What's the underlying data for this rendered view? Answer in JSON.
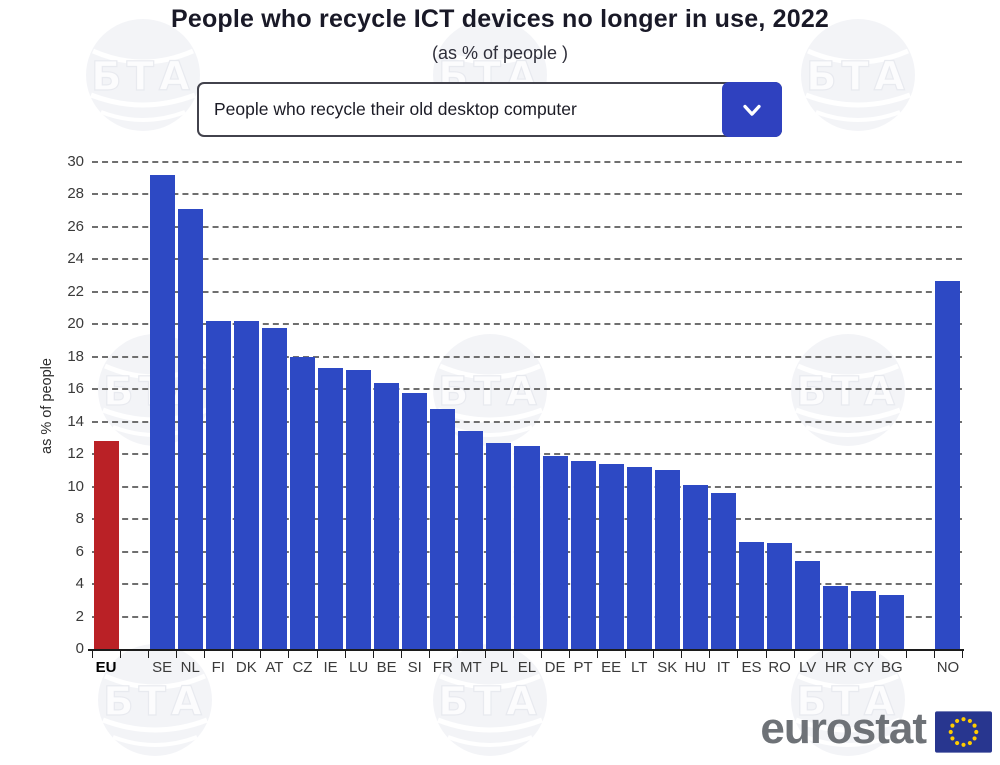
{
  "watermark": {
    "text": "БТА"
  },
  "header": {
    "title": "People who recycle ICT devices no longer in use, 2022",
    "subtitle": "(as % of people )"
  },
  "dropdown": {
    "value": "People who recycle their old desktop computer"
  },
  "chart_data": {
    "type": "bar",
    "title": "People who recycle ICT devices no longer in use, 2022",
    "subtitle": "(as % of people )",
    "categories": [
      "EU",
      "SE",
      "NL",
      "FI",
      "DK",
      "AT",
      "CZ",
      "IE",
      "LU",
      "BE",
      "SI",
      "FR",
      "MT",
      "PL",
      "EL",
      "DE",
      "PT",
      "EE",
      "LT",
      "SK",
      "HU",
      "IT",
      "ES",
      "RO",
      "LV",
      "HR",
      "CY",
      "BG",
      "NO"
    ],
    "values": [
      12.8,
      29.2,
      27.1,
      20.2,
      20.2,
      19.8,
      18.0,
      17.3,
      17.2,
      16.4,
      15.8,
      14.8,
      13.4,
      12.7,
      12.5,
      11.9,
      11.6,
      11.4,
      11.2,
      11.0,
      10.1,
      9.6,
      6.6,
      6.5,
      5.4,
      3.9,
      3.6,
      3.3,
      22.7
    ],
    "highlighted_category": "EU",
    "gaps_after_indices": [
      0,
      27
    ],
    "xlabel": "",
    "ylabel": "as % of people",
    "ylim": [
      0,
      30
    ],
    "yticks": [
      0,
      2,
      4,
      6,
      8,
      10,
      12,
      14,
      16,
      18,
      20,
      22,
      24,
      26,
      28,
      30
    ],
    "grid": "dashed-horizontal",
    "legend": "none"
  },
  "colors": {
    "bar": "#2d49c4",
    "eu_bar": "#ba2126",
    "dropdown_button": "#2f41bf",
    "grid": "#6f6f6f",
    "axis": "#1c1c1c",
    "flag_bg": "#28368f",
    "flag_stars": "#ffcc00",
    "brand_text": "#6e7277"
  },
  "footer": {
    "brand": "eurostat"
  }
}
